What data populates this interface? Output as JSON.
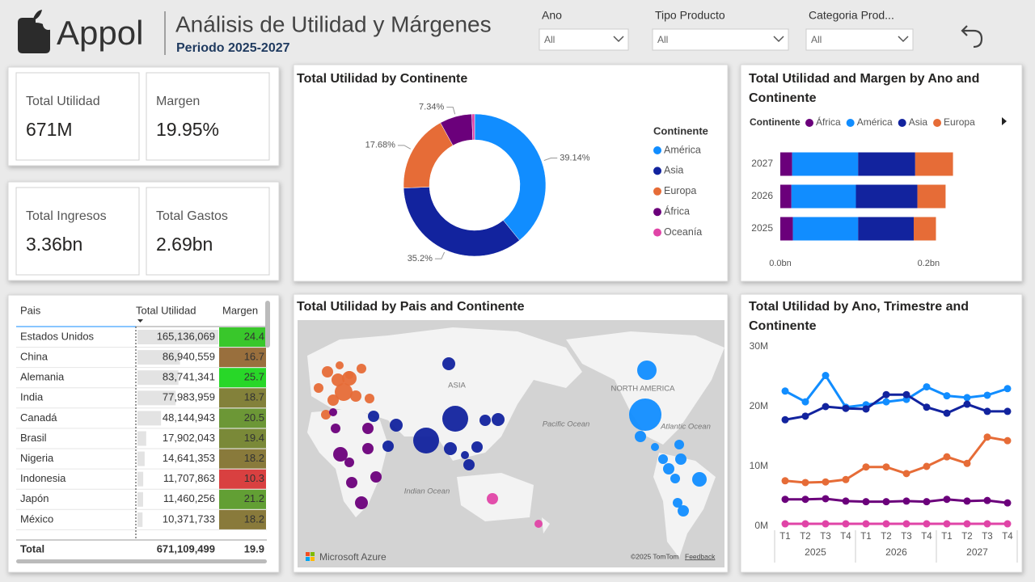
{
  "header": {
    "logo": "Appol",
    "title": "Análisis de Utilidad y Márgenes",
    "subtitle": "Periodo 2025-2027"
  },
  "filters": [
    {
      "label": "Ano",
      "value": "All"
    },
    {
      "label": "Tipo Producto",
      "value": "All"
    },
    {
      "label": "Categoria Prod...",
      "value": "All"
    }
  ],
  "kpis": [
    {
      "label": "Total Utilidad",
      "value": "671M"
    },
    {
      "label": "Margen",
      "value": "19.95%"
    },
    {
      "label": "Total Ingresos",
      "value": "3.36bn"
    },
    {
      "label": "Total Gastos",
      "value": "2.69bn"
    }
  ],
  "table": {
    "columns": [
      "Pais",
      "Total Utilidad",
      "Margen"
    ],
    "rows": [
      [
        "Estados Unidos",
        {
          "value": 165136069,
          "label": "165,136,069"
        },
        24.4
      ],
      [
        "China",
        {
          "value": 86940559,
          "label": "86,940,559"
        },
        16.7
      ],
      [
        "Alemania",
        {
          "value": 83741341,
          "label": "83,741,341"
        },
        25.7
      ],
      [
        "India",
        {
          "value": 77983959,
          "label": "77,983,959"
        },
        18.7
      ],
      [
        "Canadá",
        {
          "value": 48144943,
          "label": "48,144,943"
        },
        20.5
      ],
      [
        "Brasil",
        {
          "value": 17902043,
          "label": "17,902,043"
        },
        19.4
      ],
      [
        "Nigeria",
        {
          "value": 14641353,
          "label": "14,641,353"
        },
        18.2
      ],
      [
        "Indonesia",
        {
          "value": 11707863,
          "label": "11,707,863"
        },
        10.3
      ],
      [
        "Japón",
        {
          "value": 11460256,
          "label": "11,460,256"
        },
        21.2
      ],
      [
        "México",
        {
          "value": 10371733,
          "label": "10,371,733"
        },
        18.2
      ]
    ],
    "total": [
      "Total",
      "671,109,499",
      19.9
    ]
  },
  "map": {
    "title": "Total Utilidad by Pais and Continente",
    "labels": [
      "ASIA",
      "NORTH AMERICA",
      "Pacific Ocean",
      "Indian Ocean",
      "Atlantic Ocean"
    ],
    "brand": "Microsoft Azure",
    "copyright": "©2025 TomTom",
    "feedback": "Feedback"
  },
  "chart_data": [
    {
      "type": "pie",
      "donut": true,
      "title": "Total Utilidad by Continente",
      "legend_title": "Continente",
      "legend": "right",
      "categories": [
        "América",
        "Asia",
        "Europa",
        "África",
        "Oceanía"
      ],
      "values": [
        39.14,
        35.2,
        17.68,
        7.34,
        0.64
      ],
      "value_labels": [
        "39.14%",
        "35.2%",
        "17.68%",
        "7.34%",
        null
      ],
      "colors": [
        "#118DFF",
        "#12239E",
        "#E66C37",
        "#6B007B",
        "#E044A7"
      ]
    },
    {
      "type": "bar",
      "orientation": "horizontal",
      "stacked": true,
      "title": "Total Utilidad and Margen by Ano and Continente",
      "legend_title": "Continente",
      "legend": "top",
      "categories": [
        "2027",
        "2026",
        "2025"
      ],
      "series": [
        {
          "name": "África",
          "color": "#6B007B",
          "values": [
            0.016,
            0.015,
            0.017
          ]
        },
        {
          "name": "América",
          "color": "#118DFF",
          "values": [
            0.089,
            0.087,
            0.088
          ]
        },
        {
          "name": "Asia",
          "color": "#12239E",
          "values": [
            0.077,
            0.083,
            0.075
          ]
        },
        {
          "name": "Europa",
          "color": "#E66C37",
          "values": [
            0.051,
            0.038,
            0.03
          ]
        }
      ],
      "xlim": [
        0,
        0.24
      ],
      "xticks": [
        {
          "value": 0,
          "label": "0.0bn"
        },
        {
          "value": 0.2,
          "label": "0.2bn"
        }
      ]
    },
    {
      "type": "line",
      "title": "Total Utilidad by Ano, Trimestre and Continente",
      "categories": [
        "T1",
        "T2",
        "T3",
        "T4",
        "T1",
        "T2",
        "T3",
        "T4",
        "T1",
        "T2",
        "T3",
        "T4"
      ],
      "category_groups": [
        "2025",
        "2026",
        "2027"
      ],
      "series": [
        {
          "color": "#118DFF",
          "values": [
            22.6,
            20.8,
            25.2,
            19.9,
            20.3,
            20.8,
            21.2,
            23.3,
            21.8,
            21.5,
            21.9,
            23.0
          ]
        },
        {
          "color": "#12239E",
          "values": [
            17.8,
            18.4,
            20.0,
            19.7,
            19.6,
            22.0,
            22.0,
            19.9,
            18.9,
            20.4,
            19.2,
            19.2
          ]
        },
        {
          "color": "#E66C37",
          "values": [
            7.6,
            7.3,
            7.4,
            7.8,
            9.9,
            9.9,
            8.8,
            10.0,
            11.6,
            10.5,
            14.9,
            14.3
          ]
        },
        {
          "color": "#6B007B",
          "values": [
            4.5,
            4.5,
            4.6,
            4.2,
            4.1,
            4.1,
            4.2,
            4.1,
            4.5,
            4.2,
            4.3,
            3.9
          ]
        },
        {
          "color": "#E044A7",
          "values": [
            0.4,
            0.4,
            0.4,
            0.4,
            0.4,
            0.4,
            0.4,
            0.4,
            0.4,
            0.4,
            0.4,
            0.4
          ]
        }
      ],
      "ylim": [
        0,
        30
      ],
      "yticks": [
        {
          "value": 0,
          "label": "0M"
        },
        {
          "value": 10,
          "label": "10M"
        },
        {
          "value": 20,
          "label": "20M"
        },
        {
          "value": 30,
          "label": "30M"
        }
      ]
    }
  ]
}
